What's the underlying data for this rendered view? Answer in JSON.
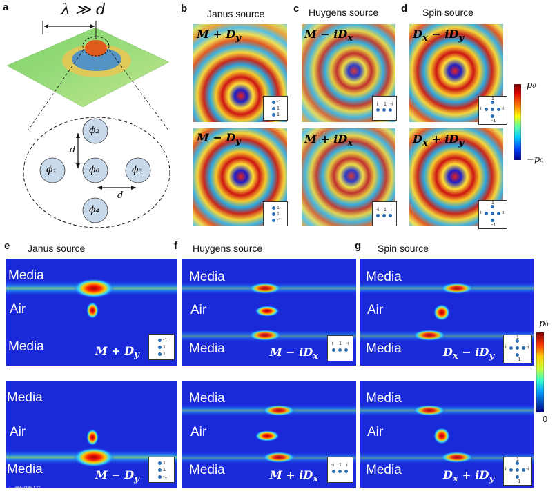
{
  "panel_letters": {
    "a": "a",
    "b": "b",
    "c": "c",
    "d": "d",
    "e": "e",
    "f": "f",
    "g": "g"
  },
  "titles": {
    "janus": "Janus source",
    "huygens": "Huygens source",
    "spin": "Spin source"
  },
  "schematic": {
    "wavelength_relation": "λ ≫ d",
    "phi": [
      "ϕ₂",
      "ϕ₁",
      "ϕ₀",
      "ϕ₃",
      "ϕ₄"
    ],
    "spacing": "d"
  },
  "formulas": {
    "b_top": "M + D",
    "b_top_sub": "y",
    "b_bot": "M − D",
    "b_bot_sub": "y",
    "c_top": "M − iD",
    "c_top_sub": "x",
    "c_bot": "M + iD",
    "c_bot_sub": "x",
    "d_top": "D",
    "d_top_sub": "x",
    "d_top_mid": " − iD",
    "d_top_sub2": "y",
    "d_bot": "D",
    "d_bot_sub": "x",
    "d_bot_mid": " + iD",
    "d_bot_sub2": "y"
  },
  "media_labels": {
    "media": "Media",
    "air": "Air"
  },
  "colorbar": {
    "max": "p₀",
    "min": "−p₀",
    "zero": "0"
  },
  "insets": {
    "janus_top": [
      "-1",
      "1",
      "1"
    ],
    "janus_bot": [
      "1",
      "1",
      "-1"
    ],
    "huygens_top": [
      "i",
      "1",
      "-i"
    ],
    "huygens_bot": [
      "-i",
      "1",
      "i"
    ],
    "spin_top": [
      "1",
      "-i",
      "i",
      "-1"
    ],
    "spin_bot": [
      "1",
      "i",
      "-i",
      "-1"
    ]
  },
  "watermark": "大数跨境",
  "colors": {
    "accent_blue": "#2d6fb3",
    "field_blue": "#1a22c8",
    "field_red": "#d81818"
  }
}
